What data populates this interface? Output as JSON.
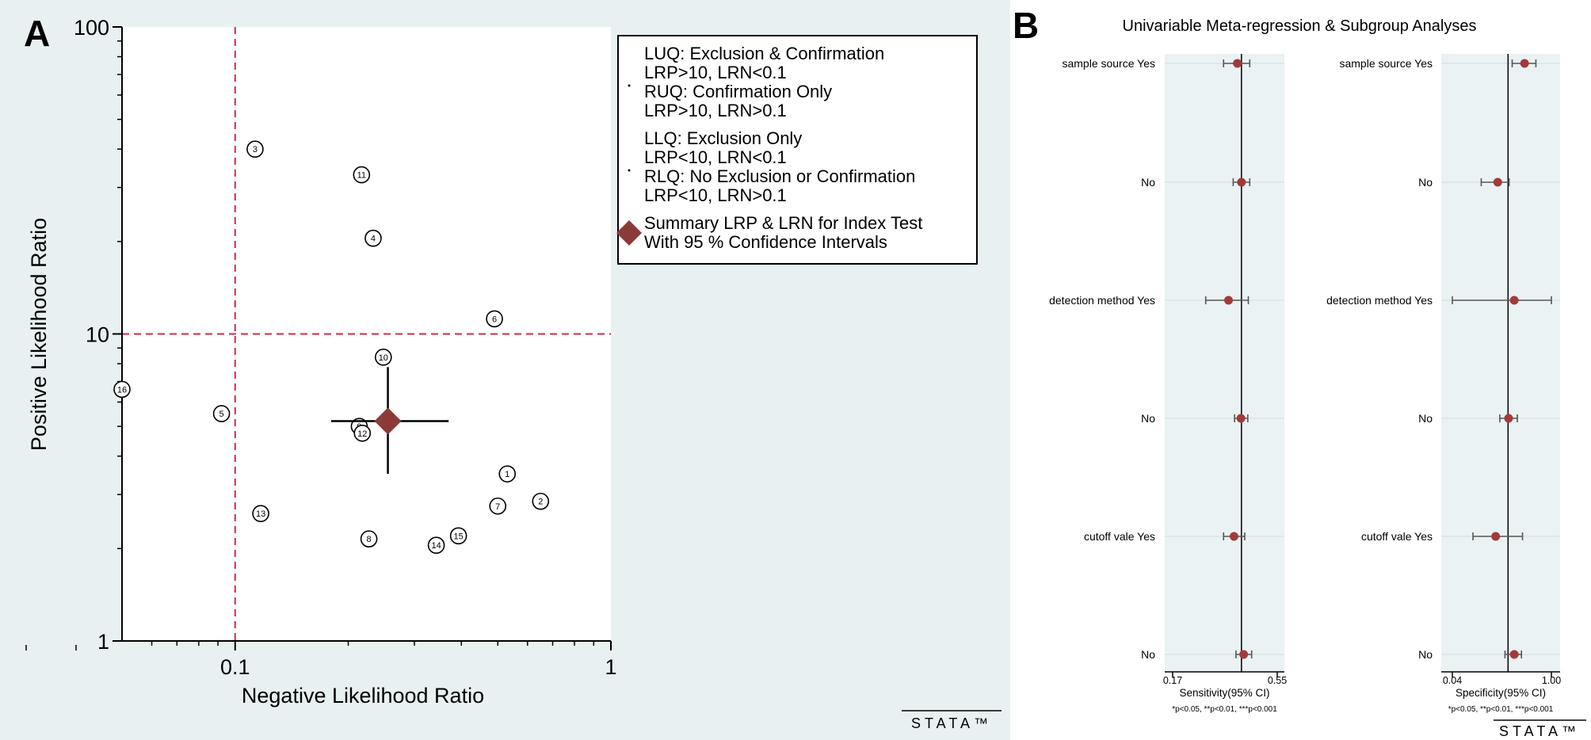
{
  "chart_data": [
    {
      "type": "scatter",
      "panel_label": "A",
      "xlabel": "Negative Likelihood Ratio",
      "ylabel": "Positive Likelihood Ratio",
      "xscale": "log",
      "yscale": "log",
      "xlim": [
        0.05,
        1
      ],
      "ylim": [
        1,
        100
      ],
      "xticks": [
        {
          "value": 0.1,
          "label": "0.1"
        },
        {
          "value": 1,
          "label": "1"
        }
      ],
      "yticks": [
        {
          "value": 1,
          "label": "1"
        },
        {
          "value": 10,
          "label": "10"
        },
        {
          "value": 100,
          "label": "100"
        }
      ],
      "reference_lines": {
        "x": 0.1,
        "y": 10,
        "color": "#d6274c"
      },
      "studies": [
        {
          "id": "1",
          "lrn": 0.53,
          "lrp": 3.5
        },
        {
          "id": "2",
          "lrn": 0.65,
          "lrp": 2.85
        },
        {
          "id": "3",
          "lrn": 0.113,
          "lrp": 40
        },
        {
          "id": "4",
          "lrn": 0.233,
          "lrp": 20.5
        },
        {
          "id": "5",
          "lrn": 0.092,
          "lrp": 5.5
        },
        {
          "id": "6",
          "lrn": 0.49,
          "lrp": 11.2
        },
        {
          "id": "7",
          "lrn": 0.5,
          "lrp": 2.75
        },
        {
          "id": "8",
          "lrn": 0.227,
          "lrp": 2.15
        },
        {
          "id": "9",
          "lrn": 0.214,
          "lrp": 5.0
        },
        {
          "id": "10",
          "lrn": 0.248,
          "lrp": 8.4
        },
        {
          "id": "11",
          "lrn": 0.217,
          "lrp": 33
        },
        {
          "id": "12",
          "lrn": 0.218,
          "lrp": 4.75
        },
        {
          "id": "13",
          "lrn": 0.117,
          "lrp": 2.6
        },
        {
          "id": "14",
          "lrn": 0.343,
          "lrp": 2.05
        },
        {
          "id": "15",
          "lrn": 0.393,
          "lrp": 2.2
        },
        {
          "id": "16",
          "lrn": 0.05,
          "lrp": 6.6
        }
      ],
      "summary": {
        "lrn": 0.255,
        "lrp": 5.2,
        "lrn_ci": [
          0.18,
          0.37
        ],
        "lrp_ci": [
          3.5,
          7.8
        ],
        "color": "#8b3a3a"
      },
      "legend": {
        "position": "right",
        "entries": [
          {
            "marker": "dot",
            "lines": [
              "LUQ: Exclusion & Confirmation",
              "LRP>10, LRN<0.1",
              "RUQ: Confirmation Only",
              "LRP>10, LRN>0.1"
            ]
          },
          {
            "marker": "dot",
            "lines": [
              "LLQ: Exclusion Only",
              "LRP<10, LRN<0.1",
              "RLQ: No Exclusion or Confirmation",
              "LRP<10, LRN>0.1"
            ]
          },
          {
            "marker": "diamond",
            "lines": [
              "Summary LRP & LRN for Index Test",
              "With 95 % Confidence Intervals"
            ]
          }
        ]
      },
      "watermark": "STATA™"
    },
    {
      "type": "forest",
      "panel_label": "B",
      "title": "Univariable Meta-regression & Subgroup Analyses",
      "row_labels": [
        "sample source Yes",
        "No",
        "detection method Yes",
        "No",
        "cutoff vale Yes",
        "No"
      ],
      "point_color": "#a33a3a",
      "footnote": "*p<0.05, **p<0.01, ***p<0.001",
      "watermark": "STATA™",
      "panels": [
        {
          "xlabel": "Sensitivity(95% CI)",
          "xlim": [
            0.17,
            0.55
          ],
          "tick_labels": [
            "0.17",
            "0.55"
          ],
          "reference": 0.42,
          "rows": [
            {
              "est": 0.405,
              "lo": 0.355,
              "hi": 0.45
            },
            {
              "est": 0.42,
              "lo": 0.39,
              "hi": 0.45
            },
            {
              "est": 0.373,
              "lo": 0.29,
              "hi": 0.445
            },
            {
              "est": 0.418,
              "lo": 0.395,
              "hi": 0.443
            },
            {
              "est": 0.393,
              "lo": 0.355,
              "hi": 0.432
            },
            {
              "est": 0.428,
              "lo": 0.4,
              "hi": 0.457
            }
          ]
        },
        {
          "xlabel": "Specificity(95% CI)",
          "xlim": [
            0.04,
            1.0
          ],
          "tick_labels": [
            "0.04",
            "1.00"
          ],
          "reference": 0.58,
          "rows": [
            {
              "est": 0.74,
              "lo": 0.62,
              "hi": 0.85
            },
            {
              "est": 0.48,
              "lo": 0.32,
              "hi": 0.59
            },
            {
              "est": 0.64,
              "lo": 0.04,
              "hi": 1.0
            },
            {
              "est": 0.585,
              "lo": 0.5,
              "hi": 0.67
            },
            {
              "est": 0.46,
              "lo": 0.24,
              "hi": 0.72
            },
            {
              "est": 0.64,
              "lo": 0.55,
              "hi": 0.71
            }
          ]
        }
      ]
    }
  ]
}
